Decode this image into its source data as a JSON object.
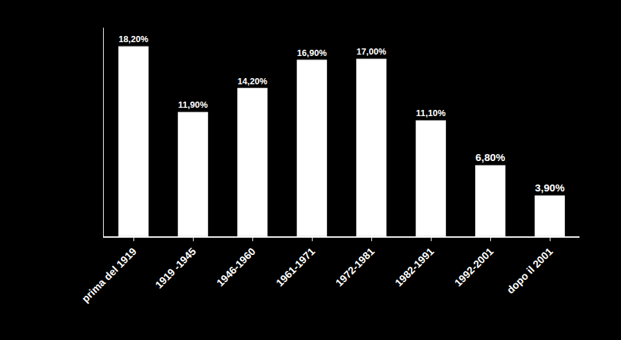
{
  "chart_data": {
    "type": "bar",
    "categories": [
      "prima del 1919",
      "1919 -1945",
      "1946-1960",
      "1961-1971",
      "1972-1981",
      "1982-1991",
      "1992-2001",
      "dopo il 2001"
    ],
    "values": [
      18.2,
      11.9,
      14.2,
      16.9,
      17.0,
      11.1,
      6.8,
      3.9
    ],
    "value_labels": [
      "18,20%",
      "11,90%",
      "14,20%",
      "16,90%",
      "17,00%",
      "11,10%",
      "6,80%",
      "3,90%"
    ],
    "color": "#ffffff",
    "ylim": [
      0,
      20
    ],
    "grid": false,
    "data_labels": true,
    "tick_labels": "x"
  }
}
